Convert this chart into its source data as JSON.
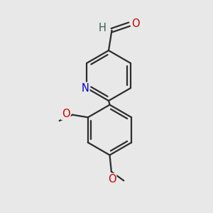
{
  "bg_color": "#e8e8e8",
  "bond_color": "#2d2d2d",
  "bond_width": 1.6,
  "atom_colors": {
    "N": "#0000cc",
    "O": "#cc0000",
    "H": "#3a5a5a"
  },
  "font_size": 10.5,
  "fig_size": [
    3.0,
    3.0
  ],
  "dpi": 100,
  "xlim": [
    0,
    10
  ],
  "ylim": [
    0,
    10
  ]
}
